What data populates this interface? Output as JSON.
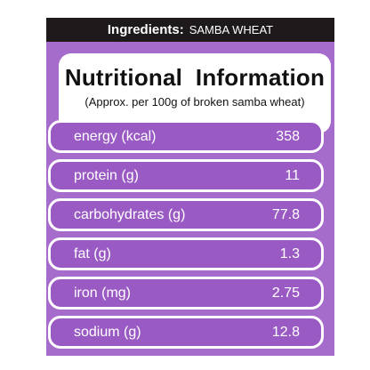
{
  "header": {
    "label": "Ingredients:",
    "value": "SAMBA WHEAT"
  },
  "title": "Nutritional  Information",
  "subtitle": "(Approx. per 100g of broken samba wheat)",
  "table": {
    "rows": [
      [
        "energy (kcal)",
        358
      ],
      [
        "protein (g)",
        11
      ],
      [
        "carbohydrates (g)",
        77.8
      ],
      [
        "fat (g)",
        1.3
      ],
      [
        "iron (mg)",
        2.75
      ],
      [
        "sodium (g)",
        12.8
      ]
    ]
  }
}
